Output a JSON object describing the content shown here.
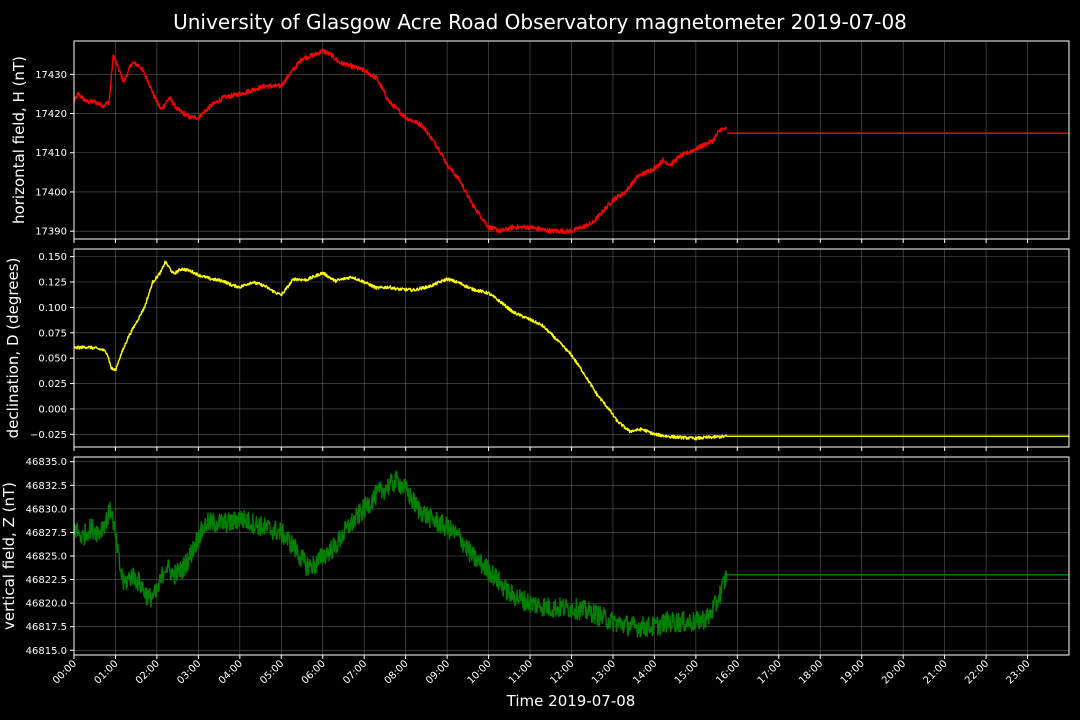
{
  "title": "University of Glasgow Acre Road Observatory magnetometer 2019-07-08",
  "xlabel": "Time 2019-07-08",
  "chart_data": {
    "type": "line",
    "x_unit": "hours",
    "x_ticks": [
      "00:00",
      "01:00",
      "02:00",
      "03:00",
      "04:00",
      "05:00",
      "06:00",
      "07:00",
      "08:00",
      "09:00",
      "10:00",
      "11:00",
      "12:00",
      "13:00",
      "14:00",
      "15:00",
      "16:00",
      "17:00",
      "18:00",
      "19:00",
      "20:00",
      "21:00",
      "22:00",
      "23:00"
    ],
    "xlim": [
      0,
      24
    ],
    "grid": true,
    "panels": [
      {
        "ylabel": "horizontal field, H (nT)",
        "color": "#ff0000",
        "ylim": [
          17388,
          17438.5
        ],
        "y_ticks": [
          17390,
          17400,
          17410,
          17420,
          17430
        ],
        "y_tick_labels": [
          "17390",
          "17400",
          "17410",
          "17420",
          "17430"
        ],
        "noise": 0.6,
        "flat_from": 15.75,
        "flat_value": 17415,
        "series": [
          {
            "x": [
              0,
              0.1,
              0.3,
              0.5,
              0.7,
              0.85,
              0.95,
              1.05,
              1.2,
              1.4,
              1.6,
              1.8,
              1.95,
              2.1,
              2.3,
              2.5,
              2.8,
              3.0,
              3.3,
              3.6,
              4.0,
              4.3,
              4.6,
              5.0,
              5.2,
              5.5,
              5.8,
              6.0,
              6.2,
              6.4,
              6.7,
              7.0,
              7.3,
              7.6,
              8.0,
              8.4,
              8.8,
              9.0,
              9.3,
              9.6,
              9.8,
              10.0,
              10.3,
              10.6,
              11.0,
              11.5,
              12.0,
              12.5,
              13.0,
              13.3,
              13.6,
              14.0,
              14.2,
              14.4,
              14.6,
              14.8,
              15.0,
              15.2,
              15.4,
              15.6,
              15.75
            ],
            "y": [
              17423,
              17425,
              17423,
              17423,
              17422,
              17423,
              17435,
              17432,
              17428,
              17433,
              17432,
              17428,
              17424,
              17421,
              17424,
              17421,
              17419,
              17419,
              17422,
              17424,
              17425,
              17426,
              17427,
              17427,
              17430,
              17434,
              17435,
              17436,
              17435,
              17433,
              17432,
              17431,
              17429,
              17423,
              17419,
              17417,
              17411,
              17407,
              17403,
              17397,
              17394,
              17391,
              17390,
              17391,
              17391,
              17390,
              17390,
              17392,
              17398,
              17400,
              17404,
              17406,
              17408,
              17407,
              17409,
              17410,
              17411,
              17412,
              17413,
              17416,
              17416
            ]
          }
        ]
      },
      {
        "ylabel": "declination, D (degrees)",
        "color": "#ffff00",
        "ylim": [
          -0.0375,
          0.1575
        ],
        "y_ticks": [
          -0.025,
          0.0,
          0.025,
          0.05,
          0.075,
          0.1,
          0.125,
          0.15
        ],
        "y_tick_labels": [
          "−0.025",
          "0.000",
          "0.025",
          "0.050",
          "0.075",
          "0.100",
          "0.125",
          "0.150"
        ],
        "noise": 0.0015,
        "flat_from": 15.75,
        "flat_value": -0.027,
        "series": [
          {
            "x": [
              0,
              0.3,
              0.5,
              0.7,
              0.8,
              0.9,
              1.0,
              1.1,
              1.3,
              1.5,
              1.7,
              1.9,
              2.1,
              2.2,
              2.4,
              2.6,
              2.8,
              3.0,
              3.3,
              3.6,
              3.8,
              4.0,
              4.3,
              4.6,
              4.8,
              5.0,
              5.3,
              5.6,
              6.0,
              6.3,
              6.7,
              7.0,
              7.3,
              7.6,
              7.8,
              8.2,
              8.6,
              9.0,
              9.3,
              9.6,
              10.0,
              10.3,
              10.6,
              11.0,
              11.3,
              11.6,
              12.0,
              12.3,
              12.6,
              12.9,
              13.1,
              13.4,
              13.7,
              14.0,
              14.3,
              14.6,
              15.0,
              15.3,
              15.75
            ],
            "y": [
              0.06,
              0.061,
              0.06,
              0.058,
              0.055,
              0.04,
              0.038,
              0.05,
              0.07,
              0.085,
              0.1,
              0.125,
              0.135,
              0.145,
              0.133,
              0.138,
              0.136,
              0.132,
              0.128,
              0.126,
              0.122,
              0.12,
              0.125,
              0.121,
              0.116,
              0.112,
              0.128,
              0.127,
              0.134,
              0.126,
              0.13,
              0.125,
              0.119,
              0.12,
              0.118,
              0.117,
              0.121,
              0.128,
              0.124,
              0.118,
              0.114,
              0.105,
              0.095,
              0.088,
              0.082,
              0.07,
              0.053,
              0.035,
              0.015,
              0.0,
              -0.012,
              -0.022,
              -0.02,
              -0.025,
              -0.027,
              -0.028,
              -0.029,
              -0.028,
              -0.027
            ]
          }
        ]
      },
      {
        "ylabel": "vertical field, Z (nT)",
        "color": "#008000",
        "ylim": [
          46814.5,
          46835.5
        ],
        "y_ticks": [
          46815.0,
          46817.5,
          46820.0,
          46822.5,
          46825.0,
          46827.5,
          46830.0,
          46832.5,
          46835.0
        ],
        "y_tick_labels": [
          "46815.0",
          "46817.5",
          "46820.0",
          "46822.5",
          "46825.0",
          "46827.5",
          "46830.0",
          "46832.5",
          "46835.0"
        ],
        "noise": 1.1,
        "flat_from": 15.75,
        "flat_value": 46823,
        "series": [
          {
            "x": [
              0,
              0.2,
              0.4,
              0.6,
              0.8,
              0.9,
              1.0,
              1.1,
              1.2,
              1.4,
              1.6,
              1.8,
              2.0,
              2.2,
              2.4,
              2.6,
              2.8,
              3.0,
              3.2,
              3.5,
              3.8,
              4.0,
              4.3,
              4.6,
              5.0,
              5.3,
              5.6,
              5.8,
              6.0,
              6.3,
              6.6,
              7.0,
              7.3,
              7.6,
              7.8,
              8.0,
              8.3,
              8.6,
              9.0,
              9.3,
              9.6,
              10.0,
              10.5,
              11.0,
              11.5,
              12.0,
              12.5,
              13.0,
              13.5,
              14.0,
              14.3,
              14.6,
              15.0,
              15.3,
              15.5,
              15.75
            ],
            "y": [
              46828,
              46827,
              46828,
              46827.5,
              46829,
              46830,
              46827,
              46824,
              46822,
              46823,
              46822,
              46820.5,
              46821,
              46824,
              46823,
              46823.5,
              46825,
              46827,
              46828.5,
              46828.5,
              46828.5,
              46829,
              46828.5,
              46828,
              46827.5,
              46826,
              46824,
              46824,
              46825,
              46826,
              46828,
              46830,
              46831.5,
              46832.5,
              46833,
              46832,
              46830,
              46829,
              46828,
              46827,
              46825,
              46823.5,
              46821,
              46820,
              46819.5,
              46819.5,
              46819,
              46818,
              46817.5,
              46817.5,
              46818,
              46818,
              46818,
              46818.5,
              46820,
              46823
            ]
          }
        ]
      }
    ]
  }
}
